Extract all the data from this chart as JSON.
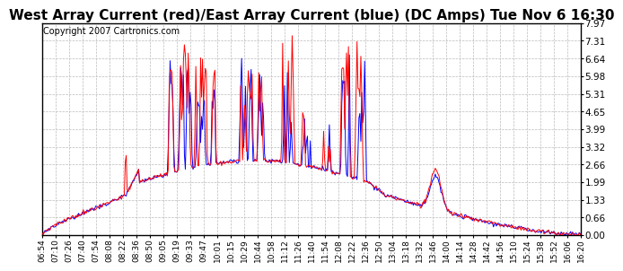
{
  "title": "West Array Current (red)/East Array Current (blue) (DC Amps) Tue Nov 6 16:30",
  "copyright": "Copyright 2007 Cartronics.com",
  "yticks": [
    0.0,
    0.66,
    1.33,
    1.99,
    2.66,
    3.32,
    3.99,
    4.65,
    5.31,
    5.98,
    6.64,
    7.31,
    7.97
  ],
  "ymin": 0.0,
  "ymax": 7.97,
  "title_fontsize": 11,
  "copyright_fontsize": 7,
  "background_color": "#ffffff",
  "grid_color": "#bbbbbb",
  "red_color": "#ff0000",
  "blue_color": "#0000ff",
  "x_label_fontsize": 6.5,
  "y_label_fontsize": 7.5,
  "xtick_labels": [
    "06:54",
    "07:10",
    "07:26",
    "07:40",
    "07:54",
    "08:08",
    "08:22",
    "08:36",
    "08:50",
    "09:05",
    "09:19",
    "09:33",
    "09:47",
    "10:01",
    "10:15",
    "10:29",
    "10:44",
    "10:58",
    "11:12",
    "11:26",
    "11:40",
    "11:54",
    "12:08",
    "12:22",
    "12:36",
    "12:50",
    "13:04",
    "13:18",
    "13:32",
    "13:46",
    "14:00",
    "14:14",
    "14:28",
    "14:42",
    "14:56",
    "15:10",
    "15:24",
    "15:38",
    "15:52",
    "16:06",
    "16:20"
  ]
}
